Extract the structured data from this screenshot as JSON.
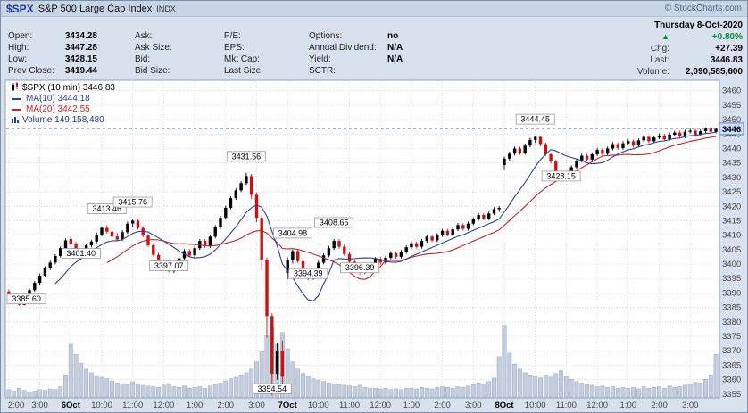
{
  "header": {
    "symbol": "$SPX",
    "index_name": "S&P 500 Large Cap Index",
    "exchange": "INDX",
    "copyright": "© StockCharts.com"
  },
  "quote_panel": {
    "ohlc": [
      {
        "label": "Open:",
        "value": "3434.28"
      },
      {
        "label": "High:",
        "value": "3447.28"
      },
      {
        "label": "Low:",
        "value": "3428.15"
      },
      {
        "label": "Prev Close:",
        "value": "3419.44"
      }
    ],
    "col_ask": [
      "Ask:",
      "Ask Size:",
      "Bid:",
      "Bid Size:"
    ],
    "col_pe": [
      "P/E:",
      "EPS:",
      "Mkt Cap:",
      "Last Size:"
    ],
    "col_misc": [
      {
        "label": "Options:",
        "value": "no"
      },
      {
        "label": "Annual Dividend:",
        "value": "N/A"
      },
      {
        "label": "Yield:",
        "value": "N/A"
      },
      {
        "label": "SCTR:",
        "value": ""
      }
    ],
    "summary": {
      "date": "Thursday 8-Oct-2020",
      "arrow": "▲",
      "pct_change": "+0.80%",
      "chg_label": "Chg:",
      "chg_value": "+27.39",
      "last_label": "Last:",
      "last_value": "3446.83",
      "volume_label": "Volume:",
      "volume_value": "2,090,585,600"
    }
  },
  "legend": {
    "main": "$SPX (10 min) 3446.83",
    "ma10": "MA(10) 3444.18",
    "ma20": "MA(20) 3442.55",
    "volume": "Volume 149,158,480"
  },
  "colors": {
    "up": "#000000",
    "down": "#cc1111",
    "ma10": "#2b3f9e",
    "ma20": "#cc2222",
    "volume_fill": "#c4cddc",
    "volume_stroke": "#9aa8c0",
    "grid": "#c8c8c8",
    "axis_text": "#444444",
    "pct_up": "#0b8a3c",
    "last_price_line": "#7d96c8",
    "annotation_border": "#999999"
  },
  "chart_data": {
    "type": "candlestick",
    "symbol": "$SPX",
    "interval": "10 min",
    "last": 3446.83,
    "last_price_label": "3446",
    "y_range": [
      3354,
      3463
    ],
    "y_ticks": [
      3355,
      3360,
      3365,
      3370,
      3375,
      3380,
      3385,
      3390,
      3395,
      3400,
      3405,
      3410,
      3415,
      3420,
      3425,
      3430,
      3435,
      3440,
      3445,
      3450,
      3455,
      3460
    ],
    "x_labels": [
      {
        "text": "2:00",
        "index": 0,
        "bold": false
      },
      {
        "text": "3:00",
        "index": 6,
        "bold": false
      },
      {
        "text": "6Oct",
        "index": 12,
        "bold": true
      },
      {
        "text": "10:00",
        "index": 18,
        "bold": false
      },
      {
        "text": "11:00",
        "index": 24,
        "bold": false
      },
      {
        "text": "12:00",
        "index": 30,
        "bold": false
      },
      {
        "text": "1:00",
        "index": 36,
        "bold": false
      },
      {
        "text": "2:00",
        "index": 42,
        "bold": false
      },
      {
        "text": "3:00",
        "index": 48,
        "bold": false
      },
      {
        "text": "7Oct",
        "index": 54,
        "bold": true
      },
      {
        "text": "10:00",
        "index": 60,
        "bold": false
      },
      {
        "text": "11:00",
        "index": 66,
        "bold": false
      },
      {
        "text": "12:00",
        "index": 72,
        "bold": false
      },
      {
        "text": "1:00",
        "index": 78,
        "bold": false
      },
      {
        "text": "2:00",
        "index": 84,
        "bold": false
      },
      {
        "text": "3:00",
        "index": 90,
        "bold": false
      },
      {
        "text": "8Oct",
        "index": 96,
        "bold": true
      },
      {
        "text": "10:00",
        "index": 102,
        "bold": false
      },
      {
        "text": "11:00",
        "index": 108,
        "bold": false
      },
      {
        "text": "12:00",
        "index": 114,
        "bold": false
      },
      {
        "text": "1:00",
        "index": 120,
        "bold": false
      },
      {
        "text": "2:00",
        "index": 126,
        "bold": false
      },
      {
        "text": "3:00",
        "index": 132,
        "bold": false
      }
    ],
    "annotations": [
      {
        "label": "3385.60",
        "index": 2,
        "value": 3385.6,
        "side": "low"
      },
      {
        "label": "3401.40",
        "index": 14,
        "value": 3401.4,
        "side": "low"
      },
      {
        "label": "3413.46",
        "index": 19,
        "value": 3413.46,
        "side": "high"
      },
      {
        "label": "3415.76",
        "index": 24,
        "value": 3415.76,
        "side": "high"
      },
      {
        "label": "3397.07",
        "index": 31,
        "value": 3397.07,
        "side": "low"
      },
      {
        "label": "3431.56",
        "index": 46,
        "value": 3431.56,
        "side": "high"
      },
      {
        "label": "3354.54",
        "index": 51,
        "value": 3354.54,
        "side": "low"
      },
      {
        "label": "3404.98",
        "index": 55,
        "value": 3404.98,
        "side": "high"
      },
      {
        "label": "3394.39",
        "index": 58,
        "value": 3394.39,
        "side": "low"
      },
      {
        "label": "3408.65",
        "index": 63,
        "value": 3408.65,
        "side": "high"
      },
      {
        "label": "3396.39",
        "index": 68,
        "value": 3396.39,
        "side": "low"
      },
      {
        "label": "3444.45",
        "index": 102,
        "value": 3444.45,
        "side": "high"
      },
      {
        "label": "3428.15",
        "index": 107,
        "value": 3428.15,
        "side": "low"
      }
    ],
    "candles": [
      [
        3390.5,
        3391.2,
        3388.3,
        3389.0
      ],
      [
        3389.0,
        3389.6,
        3386.8,
        3387.5
      ],
      [
        3387.5,
        3388.1,
        3385.6,
        3385.9
      ],
      [
        3385.9,
        3388.6,
        3385.7,
        3388.0
      ],
      [
        3388.0,
        3391.6,
        3387.4,
        3391.0
      ],
      [
        3391.0,
        3394.1,
        3390.4,
        3393.5
      ],
      [
        3393.5,
        3396.7,
        3392.9,
        3396.0
      ],
      [
        3396.0,
        3399.2,
        3395.4,
        3398.5
      ],
      [
        3398.5,
        3401.2,
        3397.9,
        3400.5
      ],
      [
        3400.5,
        3403.4,
        3399.9,
        3402.8
      ],
      [
        3402.8,
        3406.1,
        3402.2,
        3405.5
      ],
      [
        3405.5,
        3408.9,
        3404.9,
        3408.2
      ],
      [
        3408.7,
        3409.6,
        3405.9,
        3407.0
      ],
      [
        3407.0,
        3407.7,
        3402.8,
        3403.5
      ],
      [
        3403.5,
        3404.7,
        3401.4,
        3404.0
      ],
      [
        3404.0,
        3407.1,
        3403.4,
        3406.5
      ],
      [
        3406.5,
        3408.4,
        3405.8,
        3407.8
      ],
      [
        3407.8,
        3410.9,
        3407.2,
        3410.2
      ],
      [
        3410.2,
        3413.0,
        3409.6,
        3412.5
      ],
      [
        3412.5,
        3413.46,
        3410.5,
        3411.2
      ],
      [
        3411.2,
        3411.9,
        3408.9,
        3409.5
      ],
      [
        3409.5,
        3410.8,
        3408.0,
        3408.5
      ],
      [
        3408.5,
        3411.7,
        3407.9,
        3411.0
      ],
      [
        3411.0,
        3414.7,
        3410.4,
        3414.0
      ],
      [
        3414.0,
        3415.76,
        3412.8,
        3415.0
      ],
      [
        3415.0,
        3415.6,
        3411.9,
        3412.5
      ],
      [
        3412.5,
        3413.1,
        3409.2,
        3409.8
      ],
      [
        3409.8,
        3410.4,
        3405.9,
        3406.5
      ],
      [
        3406.5,
        3407.2,
        3402.6,
        3403.2
      ],
      [
        3403.2,
        3403.9,
        3399.9,
        3400.5
      ],
      [
        3400.5,
        3401.3,
        3397.9,
        3398.5
      ],
      [
        3398.5,
        3399.1,
        3397.07,
        3397.5
      ],
      [
        3397.5,
        3400.5,
        3396.9,
        3399.8
      ],
      [
        3399.8,
        3402.7,
        3399.2,
        3402.0
      ],
      [
        3402.0,
        3405.2,
        3401.4,
        3404.5
      ],
      [
        3404.5,
        3405.1,
        3402.4,
        3403.0
      ],
      [
        3403.0,
        3406.2,
        3402.4,
        3405.5
      ],
      [
        3405.5,
        3408.7,
        3404.9,
        3408.0
      ],
      [
        3408.0,
        3408.6,
        3405.6,
        3406.2
      ],
      [
        3406.2,
        3410.2,
        3405.6,
        3409.5
      ],
      [
        3409.5,
        3413.5,
        3408.9,
        3412.8
      ],
      [
        3412.8,
        3416.7,
        3412.2,
        3416.0
      ],
      [
        3416.0,
        3420.2,
        3415.4,
        3419.5
      ],
      [
        3419.5,
        3423.5,
        3418.9,
        3422.8
      ],
      [
        3422.8,
        3426.2,
        3422.2,
        3425.5
      ],
      [
        3425.5,
        3428.7,
        3424.9,
        3428.0
      ],
      [
        3428.0,
        3431.56,
        3427.4,
        3430.5
      ],
      [
        3430.5,
        3431.2,
        3422.5,
        3424.0
      ],
      [
        3424.0,
        3424.8,
        3414.5,
        3416.0
      ],
      [
        3416.0,
        3416.8,
        3398.0,
        3401.5
      ],
      [
        3401.5,
        3402.3,
        3374.5,
        3382.0
      ],
      [
        3382.0,
        3383.0,
        3354.54,
        3362.0
      ],
      [
        3362.0,
        3372.8,
        3360.0,
        3370.0
      ],
      [
        3370.0,
        3373.5,
        3356.5,
        3361.0
      ],
      [
        3397.0,
        3402.3,
        3394.8,
        3401.5
      ],
      [
        3401.5,
        3404.98,
        3400.2,
        3404.5
      ],
      [
        3404.5,
        3405.1,
        3400.3,
        3401.0
      ],
      [
        3401.0,
        3401.7,
        3396.8,
        3397.5
      ],
      [
        3397.5,
        3398.2,
        3394.39,
        3395.0
      ],
      [
        3395.0,
        3398.6,
        3394.5,
        3397.8
      ],
      [
        3397.8,
        3401.2,
        3397.1,
        3400.5
      ],
      [
        3400.5,
        3403.7,
        3399.9,
        3403.0
      ],
      [
        3403.0,
        3406.3,
        3402.4,
        3405.5
      ],
      [
        3405.5,
        3408.65,
        3404.9,
        3408.0
      ],
      [
        3408.0,
        3408.6,
        3405.3,
        3406.0
      ],
      [
        3406.0,
        3406.7,
        3402.9,
        3403.5
      ],
      [
        3403.5,
        3404.2,
        3400.2,
        3400.8
      ],
      [
        3400.8,
        3401.5,
        3397.9,
        3398.5
      ],
      [
        3398.5,
        3399.1,
        3396.39,
        3397.2
      ],
      [
        3397.2,
        3399.2,
        3396.5,
        3398.5
      ],
      [
        3398.5,
        3400.9,
        3397.9,
        3400.2
      ],
      [
        3400.2,
        3402.4,
        3399.6,
        3401.8
      ],
      [
        3401.8,
        3402.5,
        3399.8,
        3400.5
      ],
      [
        3400.5,
        3402.9,
        3399.9,
        3402.2
      ],
      [
        3402.2,
        3404.5,
        3401.6,
        3403.8
      ],
      [
        3403.8,
        3404.4,
        3401.9,
        3402.5
      ],
      [
        3402.5,
        3404.9,
        3401.9,
        3404.2
      ],
      [
        3404.2,
        3406.5,
        3403.6,
        3405.8
      ],
      [
        3405.8,
        3407.9,
        3405.2,
        3407.2
      ],
      [
        3407.2,
        3407.8,
        3405.4,
        3406.0
      ],
      [
        3406.0,
        3408.7,
        3405.4,
        3408.0
      ],
      [
        3408.0,
        3410.2,
        3407.4,
        3409.5
      ],
      [
        3409.5,
        3410.1,
        3407.6,
        3408.2
      ],
      [
        3408.2,
        3410.7,
        3407.6,
        3410.0
      ],
      [
        3410.0,
        3412.2,
        3409.4,
        3411.5
      ],
      [
        3411.5,
        3412.1,
        3409.6,
        3410.2
      ],
      [
        3410.2,
        3412.7,
        3409.6,
        3412.0
      ],
      [
        3412.0,
        3414.2,
        3411.4,
        3413.5
      ],
      [
        3413.5,
        3414.1,
        3411.6,
        3412.2
      ],
      [
        3412.2,
        3414.7,
        3411.6,
        3414.0
      ],
      [
        3414.0,
        3416.2,
        3413.4,
        3415.5
      ],
      [
        3415.5,
        3417.7,
        3414.9,
        3417.0
      ],
      [
        3417.0,
        3417.6,
        3415.2,
        3415.8
      ],
      [
        3415.8,
        3418.2,
        3415.2,
        3417.5
      ],
      [
        3417.5,
        3419.7,
        3416.9,
        3419.0
      ],
      [
        3419.0,
        3420.1,
        3418.0,
        3419.44
      ],
      [
        3434.28,
        3437.2,
        3432.5,
        3436.5
      ],
      [
        3436.5,
        3438.9,
        3435.8,
        3438.2
      ],
      [
        3438.2,
        3440.7,
        3437.6,
        3440.0
      ],
      [
        3440.0,
        3440.6,
        3437.8,
        3438.5
      ],
      [
        3438.5,
        3441.7,
        3437.9,
        3441.0
      ],
      [
        3441.0,
        3443.7,
        3440.4,
        3443.0
      ],
      [
        3443.0,
        3444.45,
        3441.9,
        3444.0
      ],
      [
        3444.0,
        3444.4,
        3440.8,
        3441.5
      ],
      [
        3441.5,
        3442.1,
        3437.3,
        3438.0
      ],
      [
        3438.0,
        3438.6,
        3434.8,
        3435.5
      ],
      [
        3435.5,
        3436.1,
        3431.3,
        3432.0
      ],
      [
        3432.0,
        3432.6,
        3428.15,
        3429.5
      ],
      [
        3429.5,
        3431.7,
        3428.9,
        3431.0
      ],
      [
        3431.0,
        3434.2,
        3430.4,
        3433.5
      ],
      [
        3433.5,
        3436.5,
        3432.9,
        3435.8
      ],
      [
        3435.8,
        3438.2,
        3435.2,
        3437.5
      ],
      [
        3437.5,
        3438.1,
        3435.5,
        3436.2
      ],
      [
        3436.2,
        3438.7,
        3435.6,
        3438.0
      ],
      [
        3438.0,
        3440.2,
        3437.4,
        3439.5
      ],
      [
        3439.5,
        3440.1,
        3437.5,
        3438.2
      ],
      [
        3438.2,
        3440.7,
        3437.6,
        3440.0
      ],
      [
        3440.0,
        3442.2,
        3439.4,
        3441.5
      ],
      [
        3441.5,
        3442.1,
        3439.5,
        3440.2
      ],
      [
        3440.2,
        3442.5,
        3439.6,
        3441.8
      ],
      [
        3441.8,
        3443.2,
        3441.2,
        3442.5
      ],
      [
        3442.5,
        3443.1,
        3440.3,
        3441.0
      ],
      [
        3441.0,
        3443.5,
        3440.4,
        3442.8
      ],
      [
        3442.8,
        3444.7,
        3442.2,
        3444.0
      ],
      [
        3444.0,
        3444.6,
        3441.8,
        3442.5
      ],
      [
        3442.5,
        3444.5,
        3441.9,
        3443.8
      ],
      [
        3443.8,
        3445.2,
        3443.2,
        3444.5
      ],
      [
        3444.5,
        3445.1,
        3442.5,
        3443.2
      ],
      [
        3443.2,
        3445.5,
        3442.6,
        3444.8
      ],
      [
        3444.8,
        3446.2,
        3444.2,
        3445.5
      ],
      [
        3445.5,
        3446.1,
        3443.5,
        3444.2
      ],
      [
        3444.2,
        3446.5,
        3443.6,
        3445.8
      ],
      [
        3445.8,
        3446.9,
        3445.2,
        3446.2
      ],
      [
        3446.2,
        3446.8,
        3444.1,
        3444.8
      ],
      [
        3444.8,
        3446.7,
        3444.2,
        3446.0
      ],
      [
        3446.0,
        3447.28,
        3445.4,
        3447.0
      ],
      [
        3447.0,
        3447.2,
        3445.1,
        3445.8
      ],
      [
        3445.8,
        3447.1,
        3445.2,
        3446.83
      ]
    ],
    "volumes": [
      10,
      8,
      12,
      9,
      7,
      8,
      10,
      9,
      11,
      10,
      14,
      30,
      72,
      58,
      46,
      38,
      33,
      29,
      27,
      25,
      22,
      19,
      18,
      17,
      21,
      18,
      16,
      15,
      14,
      13,
      16,
      18,
      14,
      13,
      15,
      12,
      13,
      14,
      12,
      15,
      17,
      19,
      22,
      25,
      27,
      30,
      33,
      38,
      48,
      62,
      85,
      95,
      72,
      88,
      66,
      48,
      38,
      32,
      28,
      25,
      23,
      21,
      19,
      18,
      17,
      16,
      15,
      14,
      16,
      13,
      12,
      12,
      11,
      12,
      10,
      11,
      10,
      12,
      12,
      11,
      13,
      12,
      11,
      13,
      14,
      13,
      12,
      14,
      13,
      15,
      17,
      19,
      18,
      21,
      26,
      55,
      98,
      60,
      45,
      38,
      33,
      30,
      28,
      26,
      30,
      27,
      32,
      36,
      28,
      24,
      21,
      19,
      17,
      16,
      14,
      15,
      13,
      14,
      12,
      13,
      12,
      13,
      11,
      14,
      12,
      13,
      14,
      12,
      15,
      13,
      14,
      16,
      18,
      20,
      19,
      24,
      30,
      58
    ]
  }
}
